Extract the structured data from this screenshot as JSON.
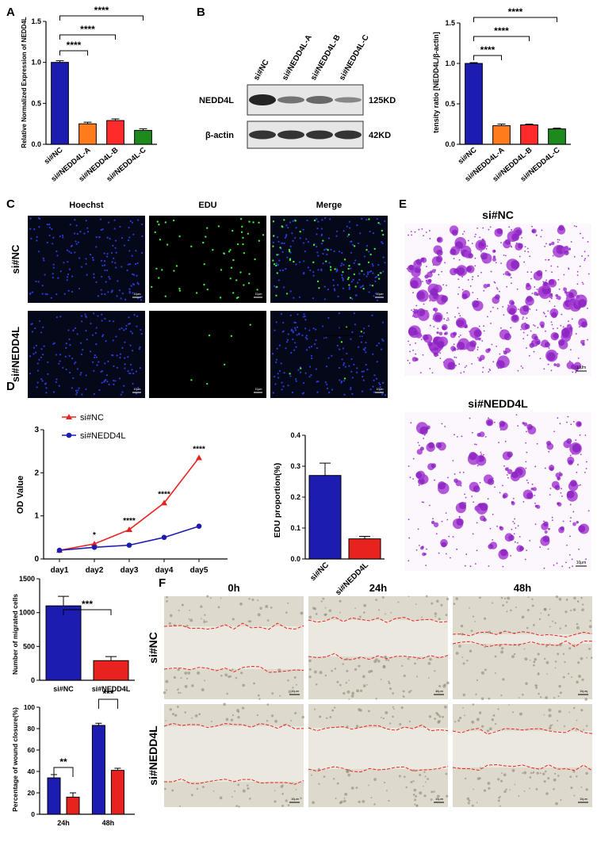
{
  "panels": {
    "A": "A",
    "B": "B",
    "C": "C",
    "D": "D",
    "E": "E",
    "F": "F"
  },
  "colors": {
    "nc": "#1c1cb0",
    "a": "#ff7b1c",
    "b": "#ff2a2a",
    "c": "#1e8a1e",
    "red": "#e8231f",
    "blue": "#1c1cb0",
    "purple": "#a43cd2"
  },
  "chart_data": [
    {
      "id": "qpcr",
      "type": "bar",
      "ylabel": "Relative Normalized Expression of NEDD4L",
      "categories": [
        "si#NC",
        "si#NEDD4L-A",
        "si#NEDD4L-B",
        "si#NEDD4L-C"
      ],
      "values": [
        1.0,
        0.25,
        0.29,
        0.17
      ],
      "errors": [
        0.02,
        0.02,
        0.02,
        0.02
      ],
      "ylim": [
        0,
        1.5
      ],
      "yticks": [
        "0.0",
        "0.5",
        "1.0",
        "1.5"
      ],
      "sig": [
        "****",
        "****",
        "****"
      ]
    },
    {
      "id": "western",
      "type": "bar",
      "ylabel": "tensity ratio [NEDD4L/β-actin]",
      "categories": [
        "si#NC",
        "si#NEDD4L-A",
        "si#NEDD4L-B",
        "si#NEDD4L-C"
      ],
      "values": [
        1.0,
        0.23,
        0.24,
        0.19
      ],
      "errors": [
        0.01,
        0.02,
        0.01,
        0.01
      ],
      "ylim": [
        0,
        1.5
      ],
      "yticks": [
        "0.0",
        "0.5",
        "1.0",
        "1.5"
      ],
      "sig": [
        "****",
        "****",
        "****"
      ]
    },
    {
      "id": "cck8",
      "type": "line",
      "ylabel": "OD Value",
      "categories": [
        "day1",
        "day2",
        "day3",
        "day4",
        "day5"
      ],
      "series": [
        {
          "name": "si#NC",
          "values": [
            0.2,
            0.35,
            0.68,
            1.3,
            2.35
          ]
        },
        {
          "name": "si#NEDD4L",
          "values": [
            0.2,
            0.27,
            0.32,
            0.5,
            0.76
          ]
        }
      ],
      "ylim": [
        0,
        3
      ],
      "yticks": [
        "0",
        "1",
        "2",
        "3"
      ],
      "sig": [
        "",
        "*",
        "****",
        "****",
        "****"
      ]
    },
    {
      "id": "edu",
      "type": "bar",
      "ylabel": "EDU proportion(%)",
      "categories": [
        "si#NC",
        "si#NEDD4L"
      ],
      "values": [
        0.27,
        0.065
      ],
      "errors": [
        0.04,
        0.008
      ],
      "ylim": [
        0,
        0.4
      ],
      "yticks": [
        "0.0",
        "0.1",
        "0.2",
        "0.3",
        "0.4"
      ],
      "sig": [
        "***"
      ]
    },
    {
      "id": "migration",
      "type": "bar",
      "ylabel": "Number of migrated cells",
      "categories": [
        "si#NC",
        "si#NEDD4L"
      ],
      "values": [
        1100,
        290
      ],
      "errors": [
        140,
        60
      ],
      "ylim": [
        0,
        1500
      ],
      "yticks": [
        "0",
        "500",
        "1000",
        "1500"
      ],
      "sig": [
        "***"
      ]
    },
    {
      "id": "wound",
      "type": "bar",
      "ylabel": "Percentage of wound closure(%)",
      "categories": [
        "24h",
        "48h"
      ],
      "series": [
        {
          "name": "si#NC",
          "values": [
            34,
            83
          ]
        },
        {
          "name": "si#NEDD4L",
          "values": [
            16,
            41
          ]
        }
      ],
      "errors": [
        [
          3,
          2
        ],
        [
          4,
          2
        ]
      ],
      "ylim": [
        0,
        100
      ],
      "yticks": [
        "0",
        "20",
        "40",
        "60",
        "80",
        "100"
      ],
      "sig": [
        "**",
        "***"
      ]
    }
  ],
  "blot": {
    "lanes": [
      "si#NC",
      "si#NEDD4L-A",
      "si#NEDD4L-B",
      "si#NEDD4L-C"
    ],
    "rows": [
      {
        "label": "NEDD4L",
        "size": "125KD"
      },
      {
        "label": "β-actin",
        "size": "42KD"
      }
    ]
  },
  "edu_images": {
    "cols": [
      "Hoechst",
      "EDU",
      "Merge"
    ],
    "rows": [
      "si#NC",
      "si#NEDD4L"
    ],
    "scale": "10μm"
  },
  "transwell": {
    "rows": [
      "si#NC",
      "si#NEDD4L"
    ],
    "scale": "10μm"
  },
  "wound_images": {
    "cols": [
      "0h",
      "24h",
      "48h"
    ],
    "rows": [
      "si#NC",
      "si#NEDD4L"
    ],
    "scale": "10μm"
  }
}
